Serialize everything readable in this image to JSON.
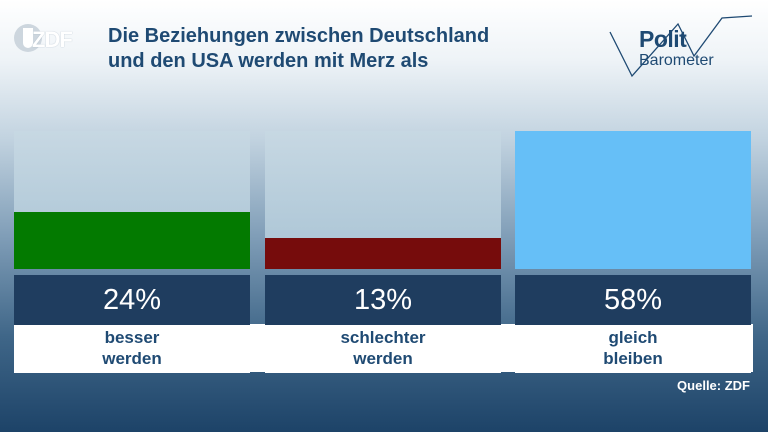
{
  "header": {
    "logo": "ZDF",
    "title_lines": [
      "Die Beziehungen zwischen Deutschland",
      "und den USA werden mit Merz als"
    ],
    "brand_line1": "Polit",
    "brand_line2": "Barometer"
  },
  "chart_data": {
    "type": "bar",
    "categories": [
      "besser werden",
      "schlechter werden",
      "gleich bleiben"
    ],
    "category_lines": [
      [
        "besser",
        "werden"
      ],
      [
        "schlechter",
        "werden"
      ],
      [
        "gleich",
        "bleiben"
      ]
    ],
    "values": [
      24,
      13,
      58
    ],
    "value_labels": [
      "24%",
      "13%",
      "58%"
    ],
    "ylim": [
      0,
      58
    ],
    "colors": [
      "#037a00",
      "#760c0c",
      "#66bff7"
    ]
  },
  "footer": {
    "source": "Quelle: ZDF"
  }
}
